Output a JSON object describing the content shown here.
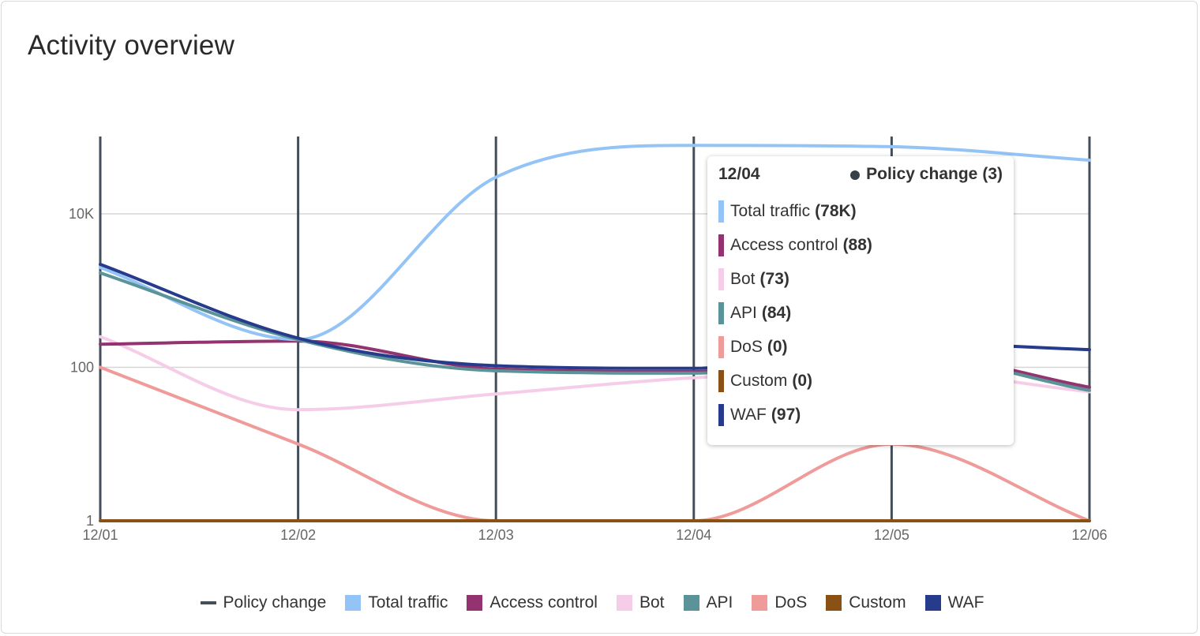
{
  "title": "Activity overview",
  "chart_data": {
    "type": "line",
    "y_scale": "log",
    "ylim": [
      1,
      80000
    ],
    "x": [
      "12/01",
      "12/02",
      "12/03",
      "12/04",
      "12/05",
      "12/06"
    ],
    "y_ticks": [
      {
        "value": 1,
        "label": "1"
      },
      {
        "value": 100,
        "label": "100"
      },
      {
        "value": 10000,
        "label": "10K"
      }
    ],
    "grid": "horizontal",
    "legend_position": "bottom",
    "series": [
      {
        "name": "Total traffic",
        "color": "#94c4f5",
        "values": [
          2000,
          230,
          30000,
          78000,
          75000,
          50000
        ]
      },
      {
        "name": "Access control",
        "color": "#93336f",
        "values": [
          200,
          220,
          95,
          88,
          160,
          55
        ]
      },
      {
        "name": "Bot",
        "color": "#f6cde9",
        "values": [
          250,
          28,
          45,
          73,
          90,
          48
        ]
      },
      {
        "name": "API",
        "color": "#5a9498",
        "values": [
          1700,
          230,
          90,
          84,
          150,
          50
        ]
      },
      {
        "name": "DoS",
        "color": "#ef9b9a",
        "values": [
          100,
          10,
          1,
          1,
          10,
          1
        ]
      },
      {
        "name": "Custom",
        "color": "#8a5114",
        "values": [
          1,
          1,
          1,
          1,
          1,
          1
        ]
      },
      {
        "name": "WAF",
        "color": "#263b8c",
        "values": [
          2200,
          240,
          105,
          97,
          210,
          170
        ]
      }
    ],
    "policy_change": {
      "name": "Policy change",
      "color": "#434e5b",
      "x": [
        "12/01",
        "12/02",
        "12/03",
        "12/04",
        "12/05",
        "12/06"
      ]
    }
  },
  "tooltip": {
    "date": "12/04",
    "policy_label": "Policy change",
    "policy_value": "(3)",
    "rows": [
      {
        "name": "Total traffic",
        "value": "(78K)",
        "color": "#94c4f5"
      },
      {
        "name": "Access control",
        "value": "(88)",
        "color": "#93336f"
      },
      {
        "name": "Bot",
        "value": "(73)",
        "color": "#f6cde9"
      },
      {
        "name": "API",
        "value": "(84)",
        "color": "#5a9498"
      },
      {
        "name": "DoS",
        "value": "(0)",
        "color": "#ef9b9a"
      },
      {
        "name": "Custom",
        "value": "(0)",
        "color": "#8a5114"
      },
      {
        "name": "WAF",
        "value": "(97)",
        "color": "#263b8c"
      }
    ]
  },
  "legend": [
    {
      "name": "Policy change",
      "kind": "line",
      "color": "#434e5b"
    },
    {
      "name": "Total traffic",
      "kind": "square",
      "color": "#94c4f5"
    },
    {
      "name": "Access control",
      "kind": "square",
      "color": "#93336f"
    },
    {
      "name": "Bot",
      "kind": "square",
      "color": "#f6cde9"
    },
    {
      "name": "API",
      "kind": "square",
      "color": "#5a9498"
    },
    {
      "name": "DoS",
      "kind": "square",
      "color": "#ef9b9a"
    },
    {
      "name": "Custom",
      "kind": "square",
      "color": "#8a5114"
    },
    {
      "name": "WAF",
      "kind": "square",
      "color": "#263b8c"
    }
  ]
}
